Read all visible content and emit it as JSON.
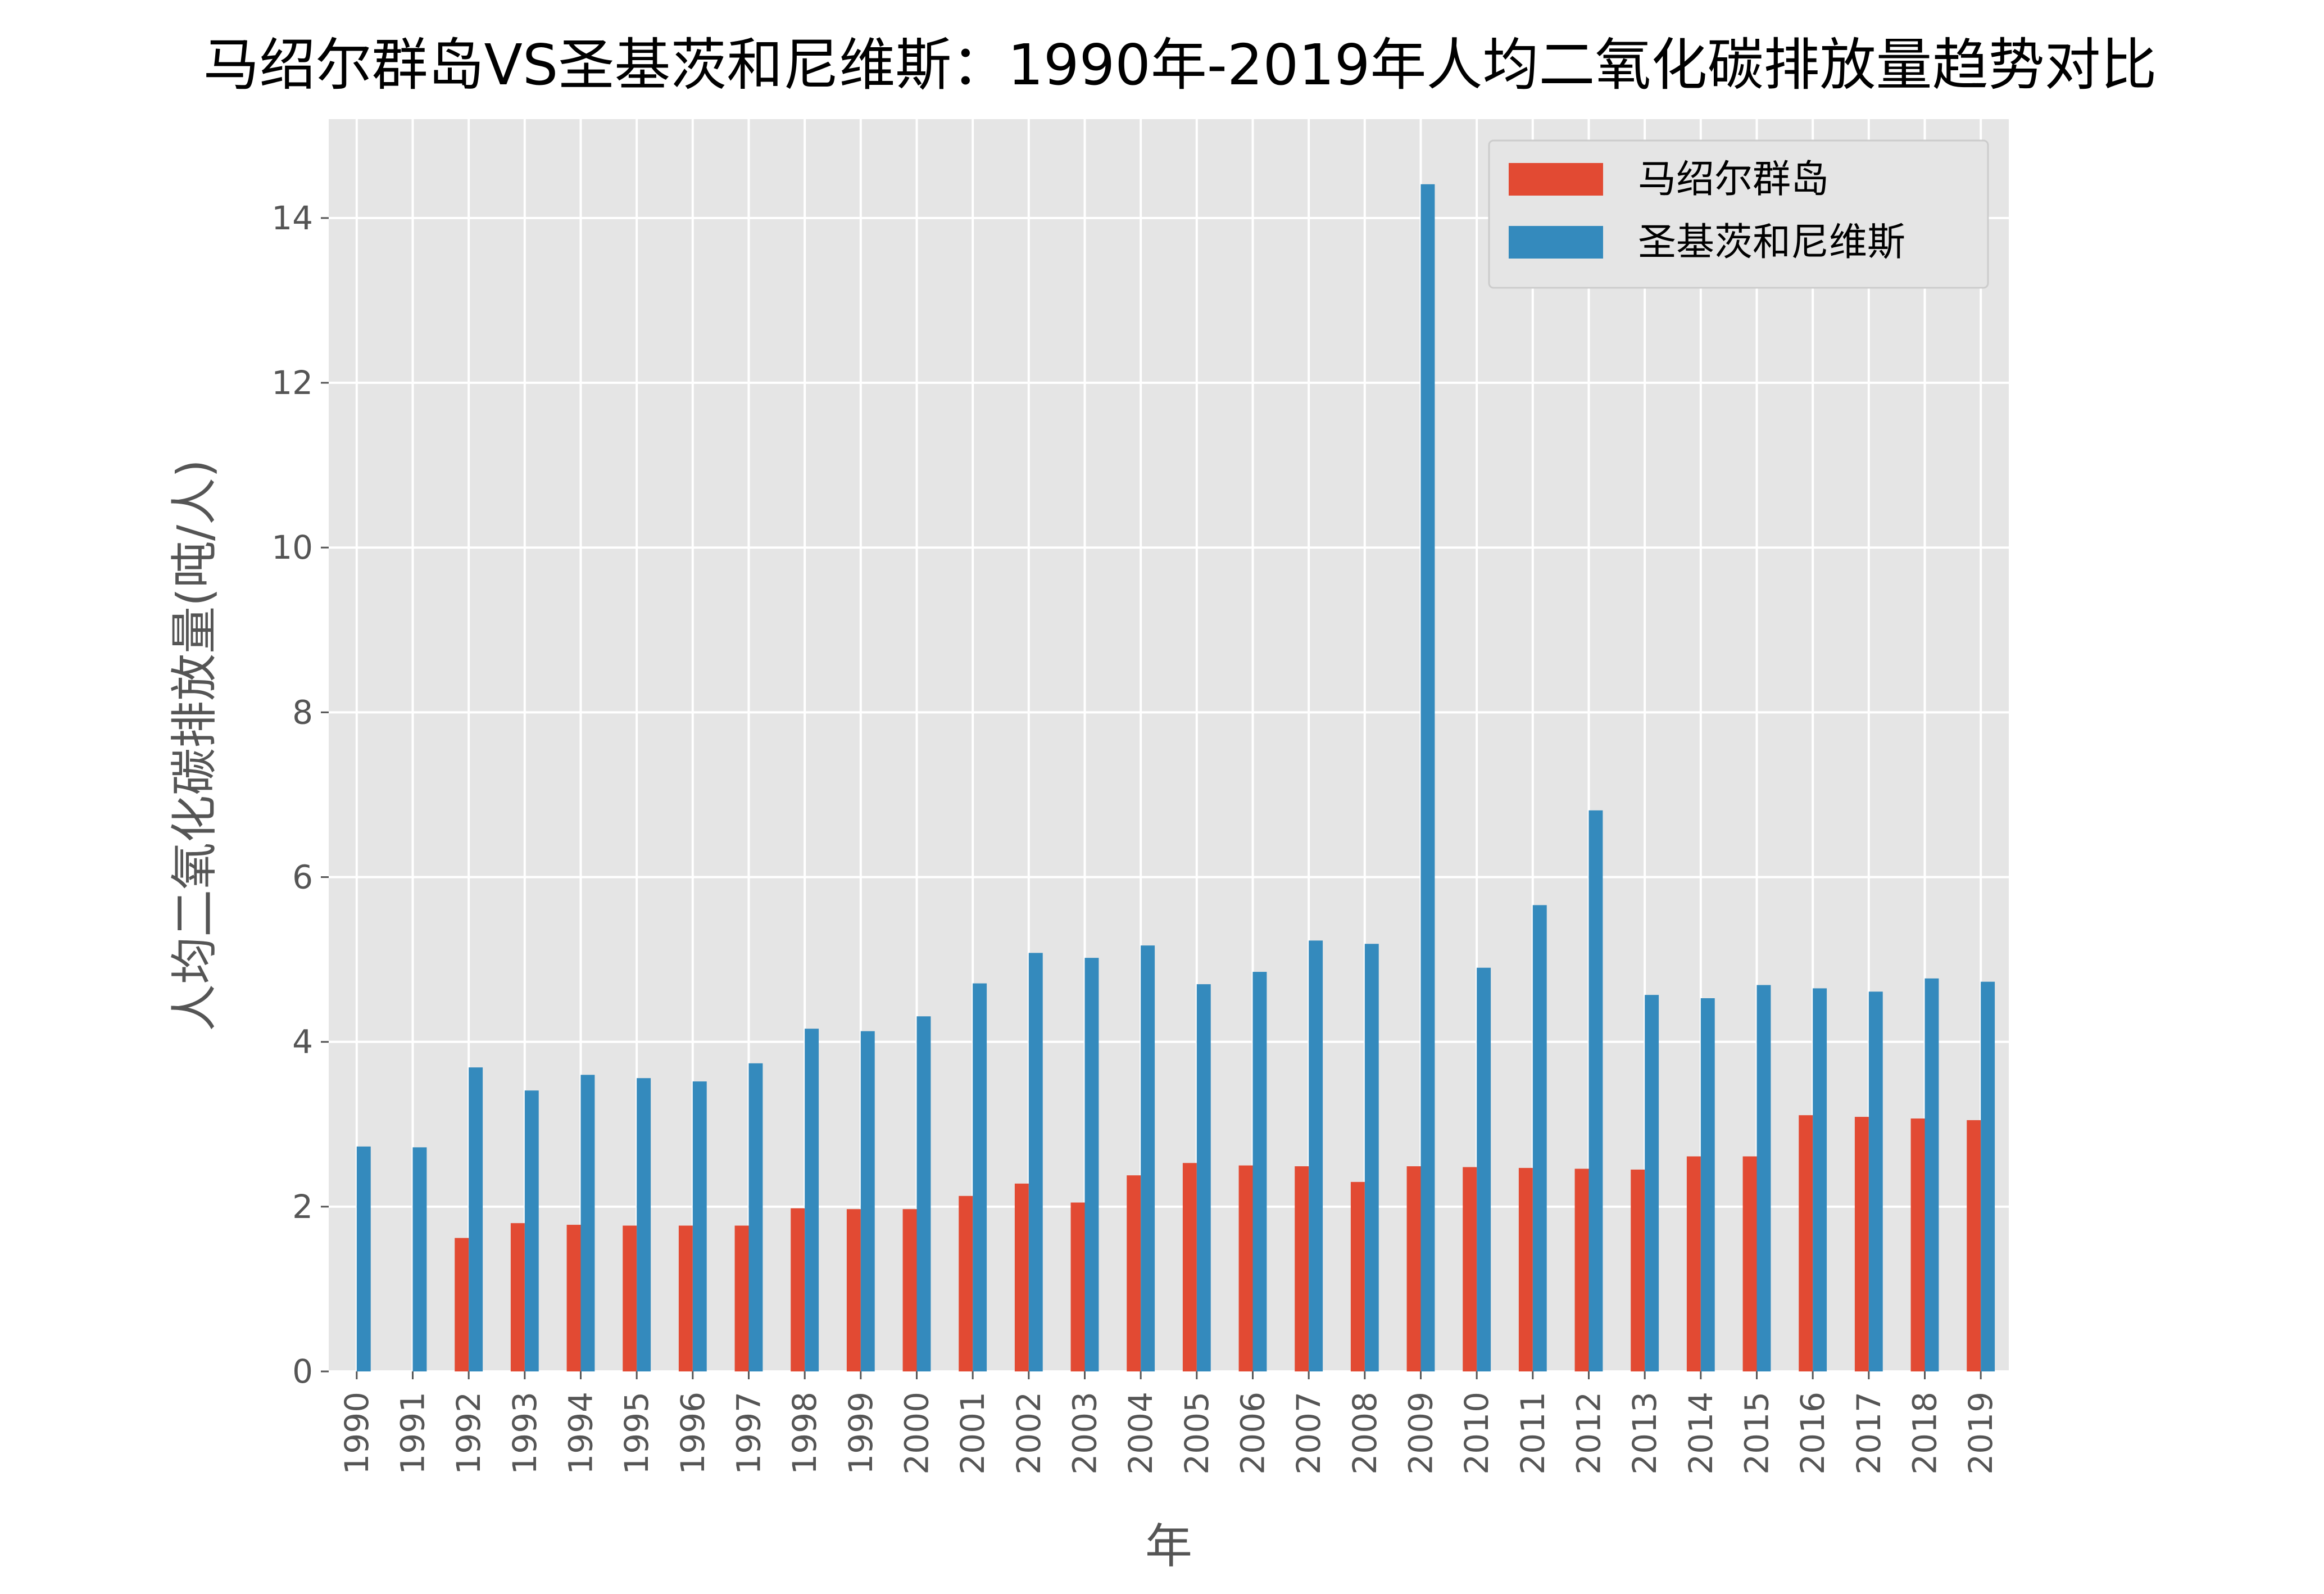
{
  "chart_data": {
    "type": "bar",
    "title": "马绍尔群岛VS圣基茨和尼维斯：1990年-2019年人均二氧化碳排放量趋势对比",
    "xlabel": "年",
    "ylabel": "人均二氧化碳排放量(吨/人)",
    "ylim": [
      0,
      15.2
    ],
    "yticks": [
      0,
      2,
      4,
      6,
      8,
      10,
      12,
      14
    ],
    "grid": true,
    "legend_position": "top-right",
    "categories": [
      "1990",
      "1991",
      "1992",
      "1993",
      "1994",
      "1995",
      "1996",
      "1997",
      "1998",
      "1999",
      "2000",
      "2001",
      "2002",
      "2003",
      "2004",
      "2005",
      "2006",
      "2007",
      "2008",
      "2009",
      "2010",
      "2011",
      "2012",
      "2013",
      "2014",
      "2015",
      "2016",
      "2017",
      "2018",
      "2019"
    ],
    "series": [
      {
        "name": "马绍尔群岛",
        "color": "#E24A33",
        "values": [
          0,
          0,
          1.62,
          1.8,
          1.78,
          1.77,
          1.77,
          1.77,
          1.98,
          1.97,
          1.97,
          2.13,
          2.28,
          2.05,
          2.38,
          2.53,
          2.5,
          2.49,
          2.3,
          2.49,
          2.48,
          2.47,
          2.46,
          2.45,
          2.61,
          2.61,
          3.11,
          3.09,
          3.07,
          3.05
        ]
      },
      {
        "name": "圣基茨和尼维斯",
        "color": "#348ABD",
        "values": [
          2.73,
          2.72,
          3.69,
          3.41,
          3.6,
          3.56,
          3.52,
          3.74,
          4.16,
          4.13,
          4.31,
          4.71,
          5.08,
          5.02,
          5.17,
          4.7,
          4.85,
          5.23,
          5.19,
          14.41,
          4.9,
          5.66,
          6.81,
          4.57,
          4.53,
          4.69,
          4.65,
          4.61,
          4.77,
          4.73
        ]
      }
    ]
  }
}
